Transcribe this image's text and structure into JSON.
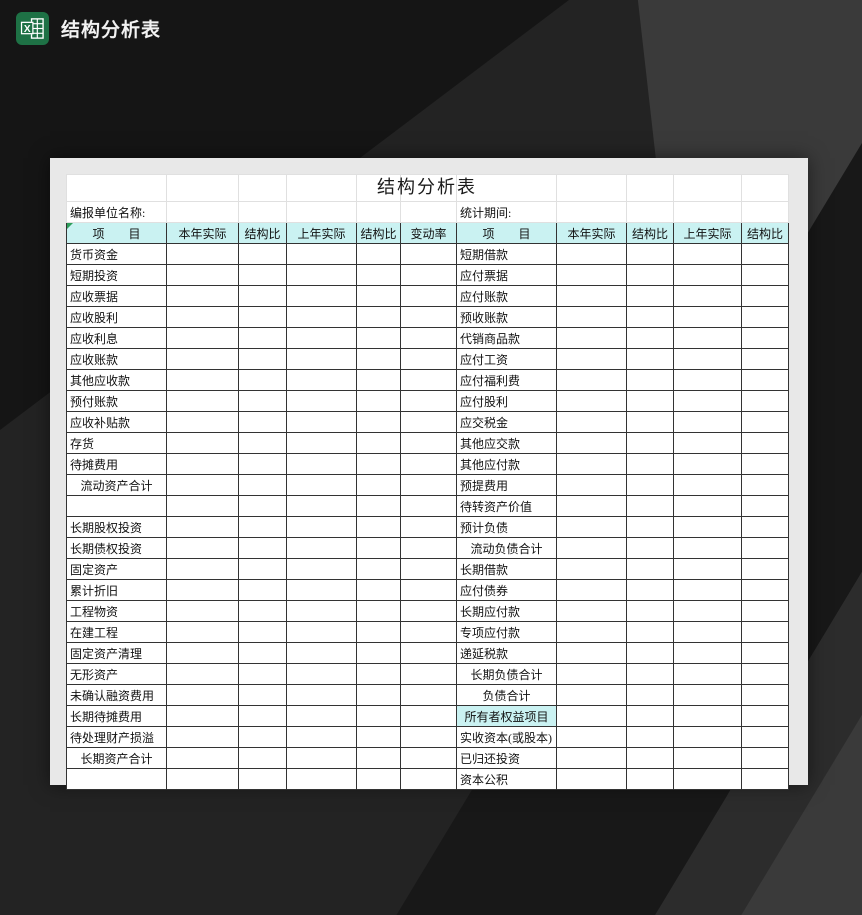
{
  "window": {
    "app_icon": "excel-icon",
    "title": "结构分析表"
  },
  "table": {
    "title": "结构分析表",
    "unit_label": "编报单位名称:",
    "period_label": "统计期间:",
    "columns": [
      "项　　目",
      "本年实际",
      "结构比",
      "上年实际",
      "结构比",
      "变动率",
      "项　　目",
      "本年实际",
      "结构比",
      "上年实际",
      "结构比"
    ],
    "rows": [
      {
        "left": "货币资金",
        "right": "短期借款"
      },
      {
        "left": "短期投资",
        "right": "应付票据"
      },
      {
        "left": "应收票据",
        "right": "应付账款"
      },
      {
        "left": "应收股利",
        "right": "预收账款"
      },
      {
        "left": "应收利息",
        "right": "代销商品款"
      },
      {
        "left": "应收账款",
        "right": "应付工资"
      },
      {
        "left": "其他应收款",
        "right": "应付福利费"
      },
      {
        "left": "预付账款",
        "right": "应付股利"
      },
      {
        "left": "应收补贴款",
        "right": "应交税金"
      },
      {
        "left": "存货",
        "right": "其他应交款"
      },
      {
        "left": "待摊费用",
        "right": "其他应付款"
      },
      {
        "left": "流动资产合计",
        "left_style": "total",
        "right": "预提费用"
      },
      {
        "left": "",
        "right": "待转资产价值"
      },
      {
        "left": "长期股权投资",
        "right": "预计负债"
      },
      {
        "left": "长期债权投资",
        "right": "流动负债合计",
        "right_style": "total"
      },
      {
        "left": "固定资产",
        "right": "长期借款"
      },
      {
        "left": "累计折旧",
        "right": "应付债券"
      },
      {
        "left": "工程物资",
        "right": "长期应付款"
      },
      {
        "left": "在建工程",
        "right": "专项应付款"
      },
      {
        "left": "固定资产清理",
        "right": "递延税款"
      },
      {
        "left": "无形资产",
        "right": "长期负债合计",
        "right_style": "total"
      },
      {
        "left": "未确认融资费用",
        "right": "负债合计",
        "right_style": "total"
      },
      {
        "left": "长期待摊费用",
        "right": "所有者权益项目",
        "right_style": "section"
      },
      {
        "left": "待处理财产损溢",
        "right": "实收资本(或股本)"
      },
      {
        "left": "长期资产合计",
        "left_style": "total",
        "right": "已归还投资"
      },
      {
        "left": "",
        "right": "资本公积"
      }
    ]
  },
  "colors": {
    "header_cell_bg": "#CCFFFF",
    "excel_green": "#1E7145",
    "backdrop": "#232323",
    "sheet_margin": "#E8E8E8"
  }
}
